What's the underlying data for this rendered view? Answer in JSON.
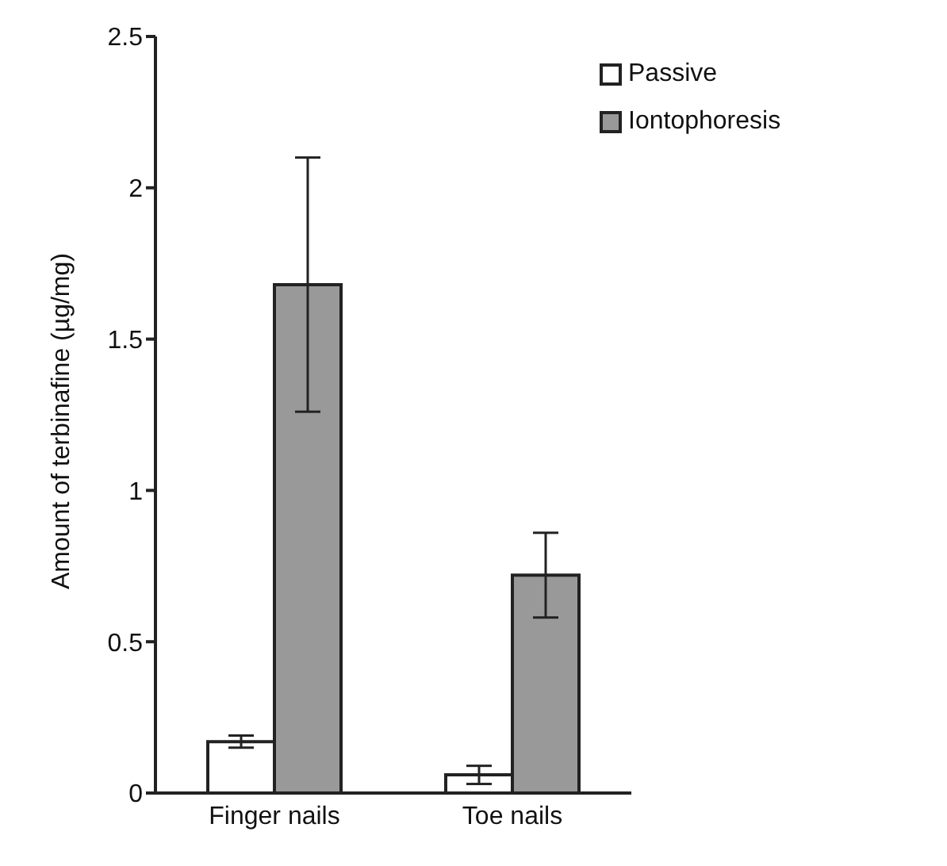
{
  "chart_data": {
    "type": "bar",
    "ylabel": "Amount of terbinafine (µg/mg)",
    "categories": [
      "Finger nails",
      "Toe nails"
    ],
    "series": [
      {
        "name": "Passive",
        "color": "#ffffff",
        "values": [
          0.17,
          0.06
        ],
        "errors": [
          0.02,
          0.03
        ]
      },
      {
        "name": "Iontophoresis",
        "color": "#999999",
        "values": [
          1.68,
          0.72
        ],
        "errors": [
          0.42,
          0.14
        ]
      }
    ],
    "ylim": [
      0,
      2.5
    ],
    "yticks": [
      0,
      0.5,
      1,
      1.5,
      2,
      2.5
    ],
    "grid": false,
    "legend": "top right"
  }
}
